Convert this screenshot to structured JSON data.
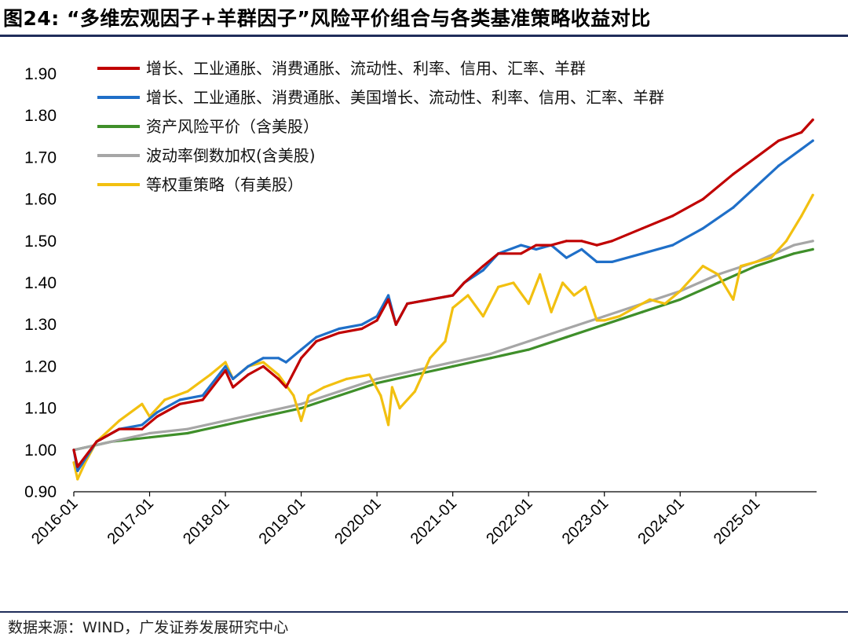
{
  "figure": {
    "title": "图24:  “多维宏观因子+羊群因子”风险平价组合与各类基准策略收益对比",
    "source": "数据来源：WIND，广发证券发展研究中心"
  },
  "chart_data": {
    "type": "line",
    "title": "“多维宏观因子+羊群因子”风险平价组合与各类基准策略收益对比",
    "xlabel": "",
    "ylabel": "",
    "ylim": [
      0.9,
      1.9
    ],
    "yticks": [
      "0.90",
      "1.00",
      "1.10",
      "1.20",
      "1.30",
      "1.40",
      "1.50",
      "1.60",
      "1.70",
      "1.80",
      "1.90"
    ],
    "xticks": [
      "2016-01",
      "2017-01",
      "2018-01",
      "2019-01",
      "2020-01",
      "2021-01",
      "2022-01",
      "2023-01",
      "2024-01",
      "2025-01"
    ],
    "xlim_years": [
      2016.0,
      2025.8
    ],
    "legend_position": "top-left",
    "series": [
      {
        "name": "增长、工业通胀、消费通胀、流动性、利率、信用、汇率、羊群",
        "color": "#c00000",
        "x": [
          2016.0,
          2016.05,
          2016.3,
          2016.6,
          2016.9,
          2017.1,
          2017.4,
          2017.7,
          2018.0,
          2018.1,
          2018.3,
          2018.5,
          2018.7,
          2018.8,
          2019.0,
          2019.2,
          2019.5,
          2019.8,
          2020.0,
          2020.15,
          2020.25,
          2020.4,
          2020.7,
          2021.0,
          2021.15,
          2021.4,
          2021.6,
          2021.9,
          2022.1,
          2022.3,
          2022.5,
          2022.7,
          2022.9,
          2023.1,
          2023.5,
          2023.9,
          2024.3,
          2024.7,
          2025.0,
          2025.3,
          2025.6,
          2025.75
        ],
        "values": [
          1.0,
          0.96,
          1.02,
          1.05,
          1.05,
          1.08,
          1.11,
          1.12,
          1.19,
          1.15,
          1.18,
          1.2,
          1.17,
          1.15,
          1.22,
          1.26,
          1.28,
          1.29,
          1.31,
          1.36,
          1.3,
          1.35,
          1.36,
          1.37,
          1.4,
          1.44,
          1.47,
          1.47,
          1.49,
          1.49,
          1.5,
          1.5,
          1.49,
          1.5,
          1.53,
          1.56,
          1.6,
          1.66,
          1.7,
          1.74,
          1.76,
          1.79
        ]
      },
      {
        "name": "增长、工业通胀、消费通胀、美国增长、流动性、利率、信用、汇率、羊群",
        "color": "#1f6fc8",
        "x": [
          2016.0,
          2016.05,
          2016.3,
          2016.6,
          2016.9,
          2017.1,
          2017.4,
          2017.7,
          2018.0,
          2018.1,
          2018.3,
          2018.5,
          2018.7,
          2018.8,
          2019.0,
          2019.2,
          2019.5,
          2019.8,
          2020.0,
          2020.15,
          2020.25,
          2020.4,
          2020.7,
          2021.0,
          2021.15,
          2021.4,
          2021.6,
          2021.9,
          2022.1,
          2022.3,
          2022.5,
          2022.7,
          2022.9,
          2023.1,
          2023.5,
          2023.9,
          2024.3,
          2024.7,
          2025.0,
          2025.3,
          2025.6,
          2025.75
        ],
        "values": [
          1.0,
          0.95,
          1.02,
          1.05,
          1.06,
          1.09,
          1.12,
          1.13,
          1.2,
          1.17,
          1.2,
          1.22,
          1.22,
          1.21,
          1.24,
          1.27,
          1.29,
          1.3,
          1.32,
          1.37,
          1.3,
          1.35,
          1.36,
          1.37,
          1.4,
          1.43,
          1.47,
          1.49,
          1.48,
          1.49,
          1.46,
          1.48,
          1.45,
          1.45,
          1.47,
          1.49,
          1.53,
          1.58,
          1.63,
          1.68,
          1.72,
          1.74
        ]
      },
      {
        "name": "资产风险平价（含美股）",
        "color": "#3f8f2a",
        "x": [
          2016.0,
          2016.5,
          2017.0,
          2017.5,
          2018.0,
          2018.5,
          2019.0,
          2019.5,
          2020.0,
          2020.5,
          2021.0,
          2021.5,
          2022.0,
          2022.5,
          2023.0,
          2023.5,
          2024.0,
          2024.5,
          2025.0,
          2025.5,
          2025.75
        ],
        "values": [
          1.0,
          1.02,
          1.03,
          1.04,
          1.06,
          1.08,
          1.1,
          1.13,
          1.16,
          1.18,
          1.2,
          1.22,
          1.24,
          1.27,
          1.3,
          1.33,
          1.36,
          1.4,
          1.44,
          1.47,
          1.48
        ]
      },
      {
        "name": "波动率倒数加权(含美股)",
        "color": "#a6a6a6",
        "x": [
          2016.0,
          2016.5,
          2017.0,
          2017.5,
          2018.0,
          2018.5,
          2019.0,
          2019.5,
          2020.0,
          2020.5,
          2021.0,
          2021.5,
          2022.0,
          2022.5,
          2023.0,
          2023.5,
          2024.0,
          2024.5,
          2025.0,
          2025.5,
          2025.75
        ],
        "values": [
          1.0,
          1.02,
          1.04,
          1.05,
          1.07,
          1.09,
          1.11,
          1.14,
          1.17,
          1.19,
          1.21,
          1.23,
          1.26,
          1.29,
          1.32,
          1.35,
          1.38,
          1.42,
          1.45,
          1.49,
          1.5
        ]
      },
      {
        "name": "等权重策略（有美股）",
        "color": "#f2c010",
        "x": [
          2016.0,
          2016.05,
          2016.15,
          2016.3,
          2016.6,
          2016.9,
          2017.0,
          2017.2,
          2017.5,
          2017.8,
          2018.0,
          2018.1,
          2018.3,
          2018.5,
          2018.7,
          2018.9,
          2019.0,
          2019.1,
          2019.3,
          2019.6,
          2019.9,
          2020.05,
          2020.15,
          2020.2,
          2020.3,
          2020.5,
          2020.7,
          2020.9,
          2021.0,
          2021.2,
          2021.4,
          2021.6,
          2021.8,
          2022.0,
          2022.15,
          2022.3,
          2022.45,
          2022.6,
          2022.75,
          2022.9,
          2023.0,
          2023.2,
          2023.4,
          2023.6,
          2023.8,
          2024.0,
          2024.3,
          2024.5,
          2024.7,
          2024.8,
          2025.0,
          2025.2,
          2025.4,
          2025.6,
          2025.75
        ],
        "values": [
          0.97,
          0.93,
          0.97,
          1.02,
          1.07,
          1.11,
          1.08,
          1.12,
          1.14,
          1.18,
          1.21,
          1.17,
          1.2,
          1.21,
          1.18,
          1.13,
          1.07,
          1.13,
          1.15,
          1.17,
          1.18,
          1.13,
          1.06,
          1.15,
          1.1,
          1.14,
          1.22,
          1.26,
          1.34,
          1.37,
          1.32,
          1.39,
          1.4,
          1.35,
          1.42,
          1.33,
          1.4,
          1.37,
          1.39,
          1.31,
          1.31,
          1.32,
          1.34,
          1.36,
          1.35,
          1.38,
          1.44,
          1.42,
          1.36,
          1.44,
          1.45,
          1.46,
          1.5,
          1.56,
          1.61
        ]
      }
    ]
  }
}
